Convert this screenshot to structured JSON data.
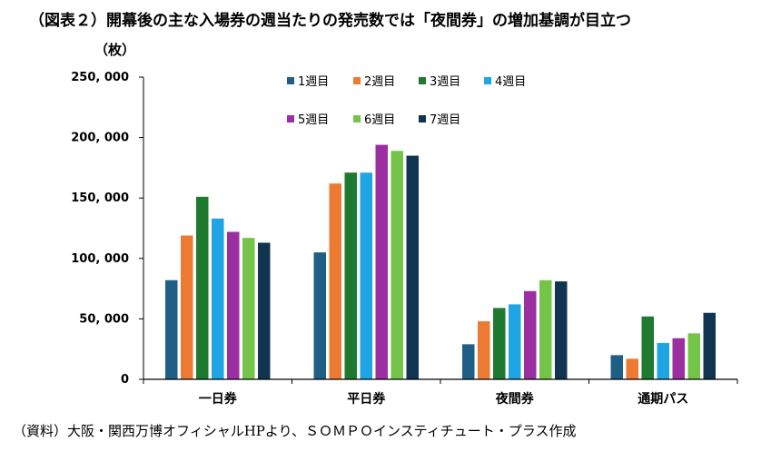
{
  "title": "（図表２）開幕後の主な入場券の週当たりの発売数では「夜間券」の増加基調が目立つ",
  "unit_label": "（枚）",
  "source": "（資料）大阪・関西万博オフィシャルHPより、ＳＯＭＰＯインスティチュート・プラス作成",
  "chart_data": {
    "type": "bar",
    "categories": [
      "一日券",
      "平日券",
      "夜間券",
      "通期パス"
    ],
    "ylim": [
      0,
      250000
    ],
    "yticks": [
      0,
      50000,
      100000,
      150000,
      200000,
      250000
    ],
    "ytick_labels": [
      "0",
      "50, 000",
      "100, 000",
      "150, 000",
      "200, 000",
      "250, 000"
    ],
    "grid": false,
    "legend_position": "top-center",
    "series": [
      {
        "name": "1週目",
        "color": "#1f5f86",
        "values": [
          82000,
          105000,
          29000,
          20000
        ]
      },
      {
        "name": "2週目",
        "color": "#ed7a33",
        "values": [
          119000,
          162000,
          48000,
          17000
        ]
      },
      {
        "name": "3週目",
        "color": "#1e7a2e",
        "values": [
          151000,
          171000,
          59000,
          52000
        ]
      },
      {
        "name": "4週目",
        "color": "#1fa5e3",
        "values": [
          133000,
          171000,
          62000,
          30000
        ]
      },
      {
        "name": "5週目",
        "color": "#9b2ea1",
        "values": [
          122000,
          194000,
          73000,
          34000
        ]
      },
      {
        "name": "6週目",
        "color": "#74c44a",
        "values": [
          117000,
          189000,
          82000,
          38000
        ]
      },
      {
        "name": "7週目",
        "color": "#0f3550",
        "values": [
          113000,
          185000,
          81000,
          55000
        ]
      }
    ]
  }
}
